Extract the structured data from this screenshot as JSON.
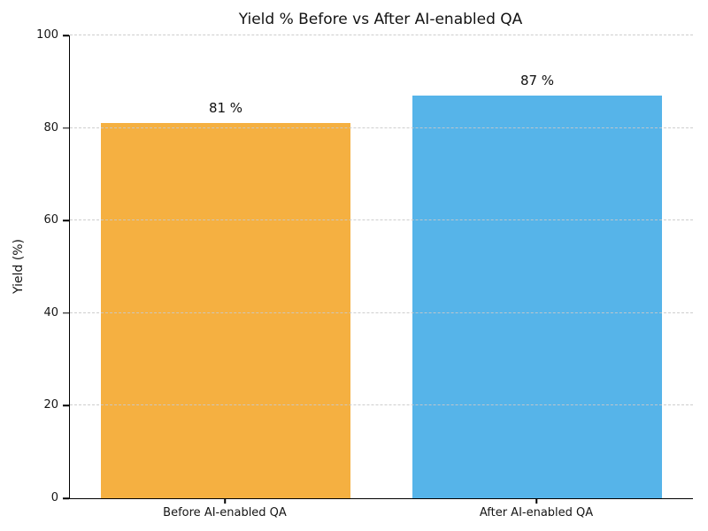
{
  "chart_data": {
    "type": "bar",
    "title": "Yield % Before vs After AI-enabled QA",
    "categories": [
      "Before AI-enabled QA",
      "After AI-enabled QA"
    ],
    "values": [
      81,
      87
    ],
    "value_labels": [
      "81 %",
      "87 %"
    ],
    "bar_colors": [
      "#F5B041",
      "#56B4E9"
    ],
    "xlabel": "",
    "ylabel": "Yield (%)",
    "ylim": [
      0,
      100
    ],
    "yticks": [
      0,
      20,
      40,
      60,
      80,
      100
    ],
    "grid": "horizontal-dashed",
    "gridline_color": "#c9c9c9",
    "axis_color": "#000000",
    "background": "#ffffff",
    "legend": "none"
  }
}
